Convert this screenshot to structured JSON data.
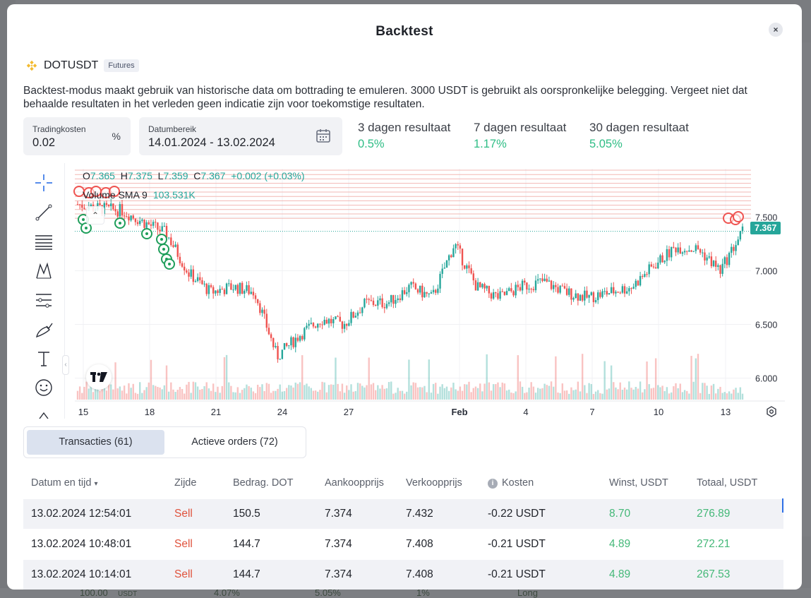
{
  "modal": {
    "title": "Backtest",
    "close_symbol": "×"
  },
  "pair": {
    "symbol": "DOTUSDT",
    "badge": "Futures",
    "logo_color": "#F3BA2F"
  },
  "description": "Backtest-modus maakt gebruik van historische data om bottrading te emuleren. 3000 USDT is gebruikt als oorspronkelijke belegging. Vergeet niet dat behaalde resultaten in het verleden geen indicatie zijn voor toekomstige resultaten.",
  "fields": {
    "fee": {
      "label": "Tradingkosten",
      "value": "0.02",
      "suffix": "%"
    },
    "range": {
      "label": "Datumbereik",
      "value": "14.01.2024 - 13.02.2024"
    }
  },
  "results": [
    {
      "label": "3 dagen resultaat",
      "value": "0.5%"
    },
    {
      "label": "7 dagen resultaat",
      "value": "1.17%"
    },
    {
      "label": "30 dagen resultaat",
      "value": "5.05%"
    }
  ],
  "chart": {
    "ohlc": {
      "o_label": "O",
      "o": "7.365",
      "h_label": "H",
      "h": "7.375",
      "l_label": "L",
      "l": "7.359",
      "c_label": "C",
      "c": "7.367",
      "change": "+0.002 (+0.03%)"
    },
    "volume_label": "Volume SMA 9",
    "volume_value": "103.531K",
    "last_price": "7.367",
    "colors": {
      "up": "#26a69a",
      "down": "#ef5350",
      "grid_lines": "#f2b8b4",
      "buy_marker": "#1e9e5a",
      "sell_marker": "#ef5350"
    }
  },
  "chart_data": {
    "type": "candlestick",
    "y_ticks": [
      "7.500",
      "7.000",
      "6.500",
      "6.000"
    ],
    "ylim": [
      5.8,
      7.95
    ],
    "x_ticks": [
      "15",
      "18",
      "21",
      "24",
      "27",
      "Feb",
      "4",
      "7",
      "10",
      "13"
    ],
    "close_path": [
      {
        "x": "14 Jan",
        "y": 7.62
      },
      {
        "x": "15 Jan",
        "y": 7.58
      },
      {
        "x": "16 Jan",
        "y": 7.56
      },
      {
        "x": "17 Jan",
        "y": 7.45
      },
      {
        "x": "18 Jan",
        "y": 7.35
      },
      {
        "x": "19 Jan",
        "y": 6.98
      },
      {
        "x": "20 Jan",
        "y": 6.8
      },
      {
        "x": "21 Jan",
        "y": 6.85
      },
      {
        "x": "22 Jan",
        "y": 6.8
      },
      {
        "x": "23 Jan",
        "y": 6.2
      },
      {
        "x": "24 Jan",
        "y": 6.4
      },
      {
        "x": "25 Jan",
        "y": 6.55
      },
      {
        "x": "26 Jan",
        "y": 6.5
      },
      {
        "x": "27 Jan",
        "y": 6.7
      },
      {
        "x": "28 Jan",
        "y": 6.7
      },
      {
        "x": "29 Jan",
        "y": 6.85
      },
      {
        "x": "30 Jan",
        "y": 6.75
      },
      {
        "x": "31 Jan",
        "y": 7.25
      },
      {
        "x": "1 Feb",
        "y": 6.85
      },
      {
        "x": "2 Feb",
        "y": 6.75
      },
      {
        "x": "3 Feb",
        "y": 6.85
      },
      {
        "x": "4 Feb",
        "y": 6.9
      },
      {
        "x": "5 Feb",
        "y": 6.8
      },
      {
        "x": "6 Feb",
        "y": 6.75
      },
      {
        "x": "7 Feb",
        "y": 6.8
      },
      {
        "x": "8 Feb",
        "y": 6.85
      },
      {
        "x": "9 Feb",
        "y": 7.05
      },
      {
        "x": "10 Feb",
        "y": 7.22
      },
      {
        "x": "11 Feb",
        "y": 7.2
      },
      {
        "x": "12 Feb",
        "y": 7.0
      },
      {
        "x": "13 Feb",
        "y": 7.367
      }
    ]
  },
  "tabs": [
    {
      "label": "Transacties (61)",
      "active": true
    },
    {
      "label": "Actieve orders (72)",
      "active": false
    }
  ],
  "table": {
    "headers": [
      "Datum en tijd",
      "Zijde",
      "Bedrag. DOT",
      "Aankoopprijs",
      "Verkoopprijs",
      "Kosten",
      "Winst, USDT",
      "Totaal, USDT"
    ],
    "sort_indicator": "▾",
    "rows": [
      [
        "13.02.2024 12:54:01",
        "Sell",
        "150.5",
        "7.374",
        "7.432",
        "-0.22 USDT",
        "8.70",
        "276.89"
      ],
      [
        "13.02.2024 10:48:01",
        "Sell",
        "144.7",
        "7.374",
        "7.408",
        "-0.21 USDT",
        "4.89",
        "272.21"
      ],
      [
        "13.02.2024 10:14:01",
        "Sell",
        "144.7",
        "7.374",
        "7.408",
        "-0.21 USDT",
        "4.89",
        "267.53"
      ]
    ]
  },
  "background": {
    "bottom_values": [
      "100.00",
      "USDT",
      "4.07%",
      "5.05%",
      "1%",
      "Long"
    ]
  }
}
